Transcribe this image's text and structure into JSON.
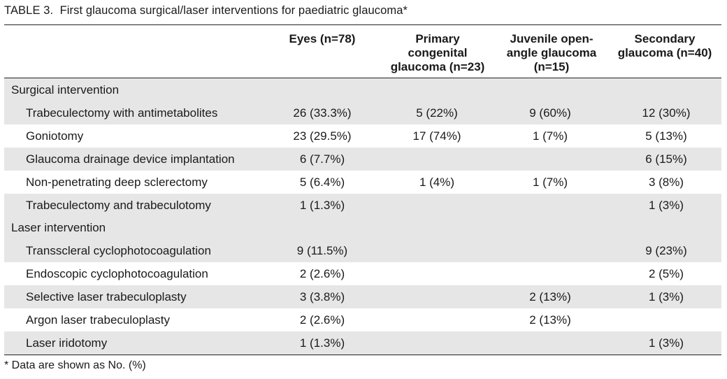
{
  "caption": {
    "label": "TABLE 3.",
    "title": "First glaucoma surgical/laser interventions for paediatric glaucoma*"
  },
  "headers": [
    "Eyes (n=78)",
    "Primary congenital glaucoma (n=23)",
    "Juvenile open-angle glaucoma (n=15)",
    "Secondary glaucoma (n=40)"
  ],
  "header_lines": [
    [
      "Eyes (n=78)"
    ],
    [
      "Primary",
      "congenital",
      "glaucoma (n=23)"
    ],
    [
      "Juvenile open-",
      "angle glaucoma",
      "(n=15)"
    ],
    [
      "Secondary",
      "glaucoma (n=40)"
    ]
  ],
  "rows": [
    {
      "type": "group",
      "label": "Surgical intervention",
      "values": [
        "",
        "",
        "",
        ""
      ]
    },
    {
      "type": "item",
      "label": "Trabeculectomy with antimetabolites",
      "values": [
        "26 (33.3%)",
        "5 (22%)",
        "9 (60%)",
        "12 (30%)"
      ]
    },
    {
      "type": "item",
      "label": "Goniotomy",
      "values": [
        "23 (29.5%)",
        "17 (74%)",
        "1 (7%)",
        "5 (13%)"
      ]
    },
    {
      "type": "item",
      "label": "Glaucoma drainage device implantation",
      "values": [
        "6 (7.7%)",
        "",
        "",
        "6 (15%)"
      ]
    },
    {
      "type": "item",
      "label": "Non-penetrating deep sclerectomy",
      "values": [
        "5 (6.4%)",
        "1 (4%)",
        "1 (7%)",
        "3 (8%)"
      ]
    },
    {
      "type": "item",
      "label": "Trabeculectomy and trabeculotomy",
      "values": [
        "1 (1.3%)",
        "",
        "",
        "1 (3%)"
      ]
    },
    {
      "type": "group",
      "label": "Laser intervention",
      "values": [
        "",
        "",
        "",
        ""
      ]
    },
    {
      "type": "item",
      "label": "Transscleral cyclophotocoagulation",
      "values": [
        "9 (11.5%)",
        "",
        "",
        "9 (23%)"
      ]
    },
    {
      "type": "item",
      "label": "Endoscopic cyclophotocoagulation",
      "values": [
        "2 (2.6%)",
        "",
        "",
        "2 (5%)"
      ]
    },
    {
      "type": "item",
      "label": "Selective laser trabeculoplasty",
      "values": [
        "3 (3.8%)",
        "",
        "2 (13%)",
        "1 (3%)"
      ]
    },
    {
      "type": "item",
      "label": "Argon laser trabeculoplasty",
      "values": [
        "2 (2.6%)",
        "",
        "2 (13%)",
        ""
      ]
    },
    {
      "type": "item",
      "label": "Laser iridotomy",
      "values": [
        "1 (1.3%)",
        "",
        "",
        "1 (3%)"
      ]
    }
  ],
  "footnote": "*   Data are shown as No. (%)"
}
